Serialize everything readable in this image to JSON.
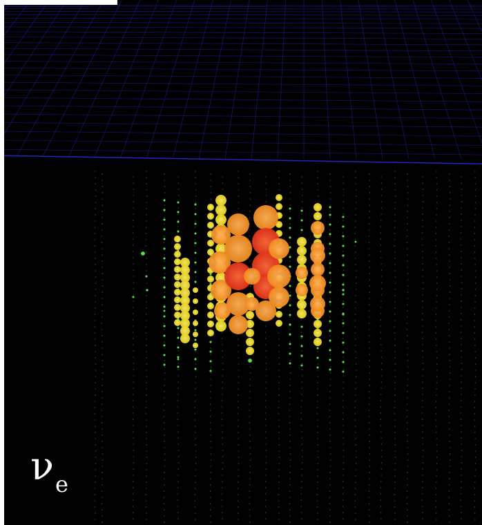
{
  "event_display": {
    "label_symbol": "ν",
    "label_subscript": "e",
    "colors": {
      "background": "#000000",
      "grid_line": "#1f1fa8",
      "horizon_line": "#2a2ad0",
      "string_dot": "#7a7a7a",
      "hit_green": "#3ec83e",
      "hit_yellow": "#e8d21a",
      "hit_orange": "#f08a1e",
      "hit_red": "#e4321a"
    },
    "hit_intensity_levels": [
      "green",
      "yellow",
      "orange",
      "red"
    ]
  }
}
